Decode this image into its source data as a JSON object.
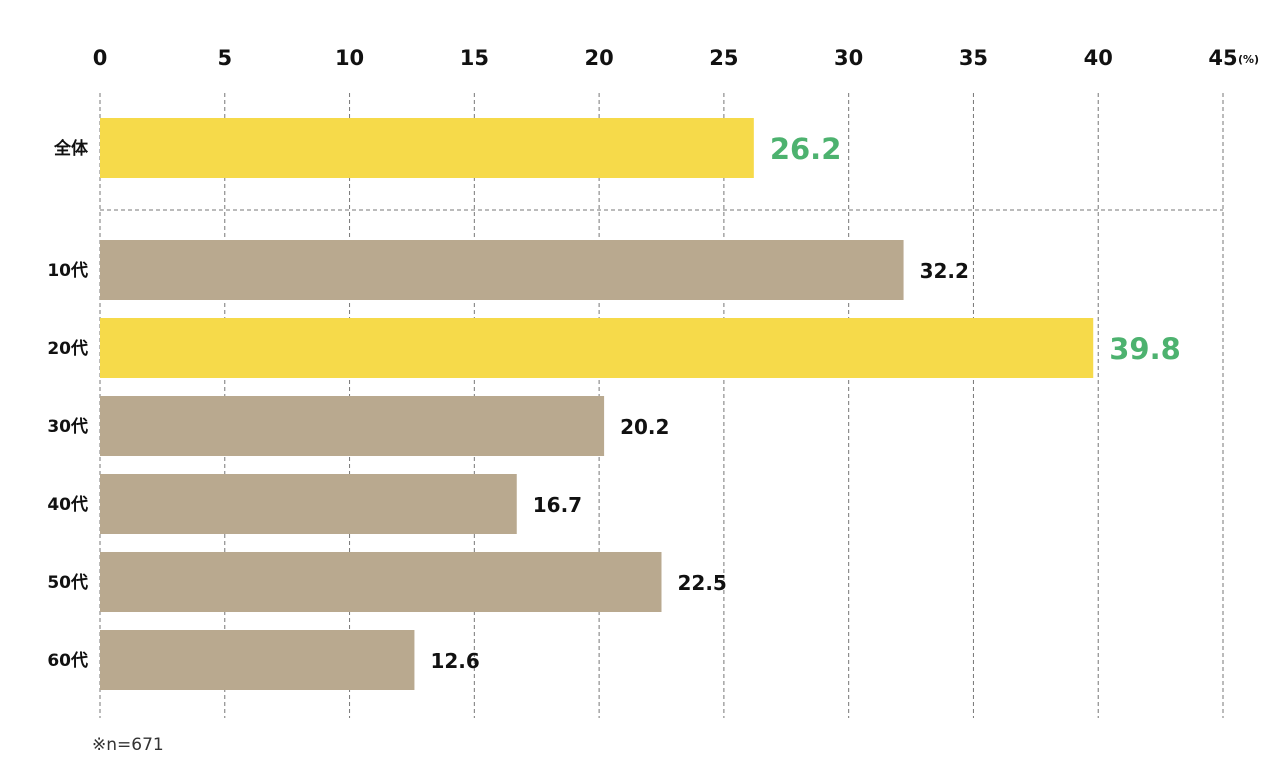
{
  "chart_data": {
    "type": "bar",
    "orientation": "horizontal",
    "title": "",
    "xlabel": "",
    "ylabel": "",
    "unit": "(%)",
    "xlim": [
      0,
      45
    ],
    "xticks": [
      0,
      5,
      10,
      15,
      20,
      25,
      30,
      35,
      40,
      45
    ],
    "grid": true,
    "categories": [
      "全体",
      "10代",
      "20代",
      "30代",
      "40代",
      "50代",
      "60代"
    ],
    "values": [
      26.2,
      32.2,
      39.8,
      20.2,
      16.7,
      22.5,
      12.6
    ],
    "value_labels": [
      "26.2",
      "32.2",
      "39.8",
      "20.2",
      "16.7",
      "22.5",
      "12.6"
    ],
    "highlighted": [
      true,
      false,
      true,
      false,
      false,
      false,
      false
    ],
    "separator_after_index": 0,
    "colors": {
      "highlight_bar": "#f6da4a",
      "normal_bar": "#b9a98f",
      "highlight_label": "#4db26f",
      "normal_label": "#111111"
    },
    "note": "※n=671"
  }
}
